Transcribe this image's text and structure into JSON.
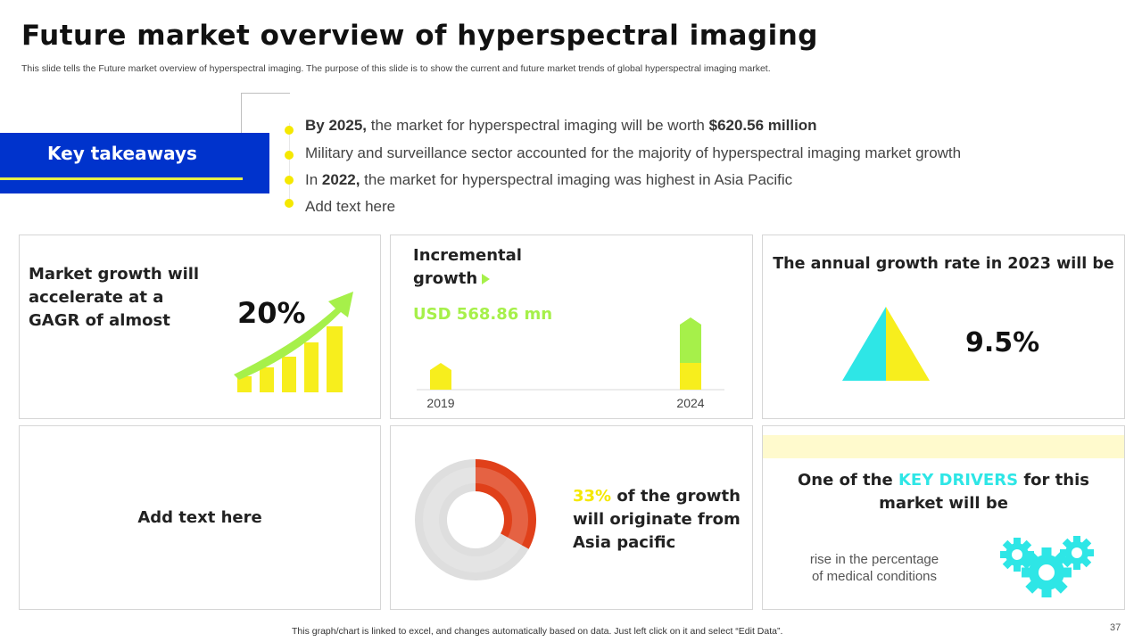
{
  "header": {
    "title": "Future market overview of hyperspectral imaging",
    "subtitle": "This slide tells the Future market overview of hyperspectral imaging. The purpose of this slide is to show the current and future market trends of global hyperspectral imaging market."
  },
  "key_takeaways": {
    "label": "Key takeaways",
    "bullets": [
      {
        "bold1": "By 2025,",
        "text": " the market for hyperspectral imaging will be worth ",
        "bold2": "$620.56 million"
      },
      {
        "text": "Military and surveillance sector accounted for the majority of hyperspectral imaging market growth"
      },
      {
        "pre": "In ",
        "bold1": "2022,",
        "text": " the market for hyperspectral imaging was highest in Asia Pacific"
      },
      {
        "text": "Add text here"
      }
    ]
  },
  "card_cagr": {
    "text_line1": "Market growth will",
    "text_line2": "accelerate  at a",
    "text_line3": "GAGR of almost",
    "value": "20%"
  },
  "card_incremental": {
    "title_line1": "Incremental",
    "title_line2": "growth",
    "amount": "USD 568.86 mn"
  },
  "card_annual": {
    "title": "The annual growth rate in 2023 will be",
    "value": "9.5%"
  },
  "card_add": {
    "text": "Add text here"
  },
  "card_asia": {
    "pct": "33%",
    "line1_rest": " of the growth",
    "line2": "will originate from",
    "line3": "Asia pacific"
  },
  "card_drivers": {
    "line1_pre": "One of the ",
    "line1_highlight": "KEY DRIVERS",
    "line1_post": " for this",
    "line2": "market will be",
    "desc_line1": "rise in the percentage",
    "desc_line2": "of medical conditions"
  },
  "chart_data": [
    {
      "type": "bar",
      "categories": [
        "2019",
        "2024"
      ],
      "series": [
        {
          "values": [
            1,
            1
          ]
        },
        {
          "values": [
            0,
            1.7
          ]
        }
      ]
    },
    {
      "type": "pie",
      "categories": [
        "Asia pacific",
        "Other"
      ],
      "values": [
        33,
        67
      ]
    }
  ],
  "footer": {
    "note": "This graph/chart is linked to excel,  and changes automatically based on data. Just left click on it and select “Edit Data”.",
    "page_number": "37"
  },
  "colors": {
    "accent_blue": "#0033cc",
    "yellow": "#f7ee1d",
    "green": "#a6f04a",
    "cyan": "#2ee6e6",
    "red": "#e0401a"
  }
}
